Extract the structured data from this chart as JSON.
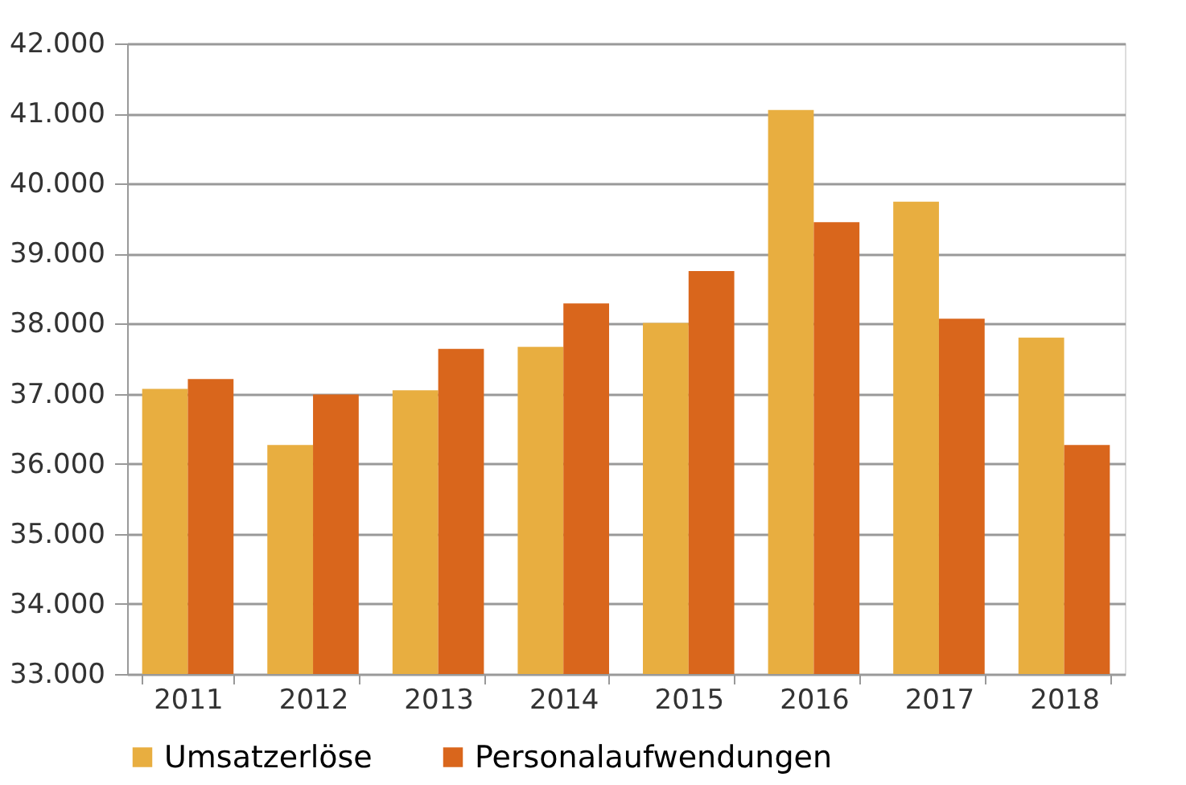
{
  "chart_data": {
    "type": "bar",
    "categories": [
      "2011",
      "2012",
      "2013",
      "2014",
      "2015",
      "2016",
      "2017",
      "2018"
    ],
    "series": [
      {
        "name": "Umsatzerlöse",
        "color": "#e8ae40",
        "values": [
          37070,
          36270,
          37050,
          37670,
          38010,
          41050,
          39740,
          37800
        ]
      },
      {
        "name": "Personalaufwendungen",
        "color": "#d9661c",
        "values": [
          37210,
          36990,
          37640,
          38290,
          38750,
          39450,
          38070,
          36270
        ]
      }
    ],
    "ylim": [
      33000,
      42000
    ],
    "yticks": [
      {
        "value": 33000,
        "label": "33.000"
      },
      {
        "value": 34000,
        "label": "34.000"
      },
      {
        "value": 35000,
        "label": "35.000"
      },
      {
        "value": 36000,
        "label": "36.000"
      },
      {
        "value": 37000,
        "label": "37.000"
      },
      {
        "value": 38000,
        "label": "38.000"
      },
      {
        "value": 39000,
        "label": "39.000"
      },
      {
        "value": 40000,
        "label": "40.000"
      },
      {
        "value": 41000,
        "label": "41.000"
      },
      {
        "value": 42000,
        "label": "42.000"
      }
    ],
    "grid": "y",
    "legend": "bottom"
  }
}
